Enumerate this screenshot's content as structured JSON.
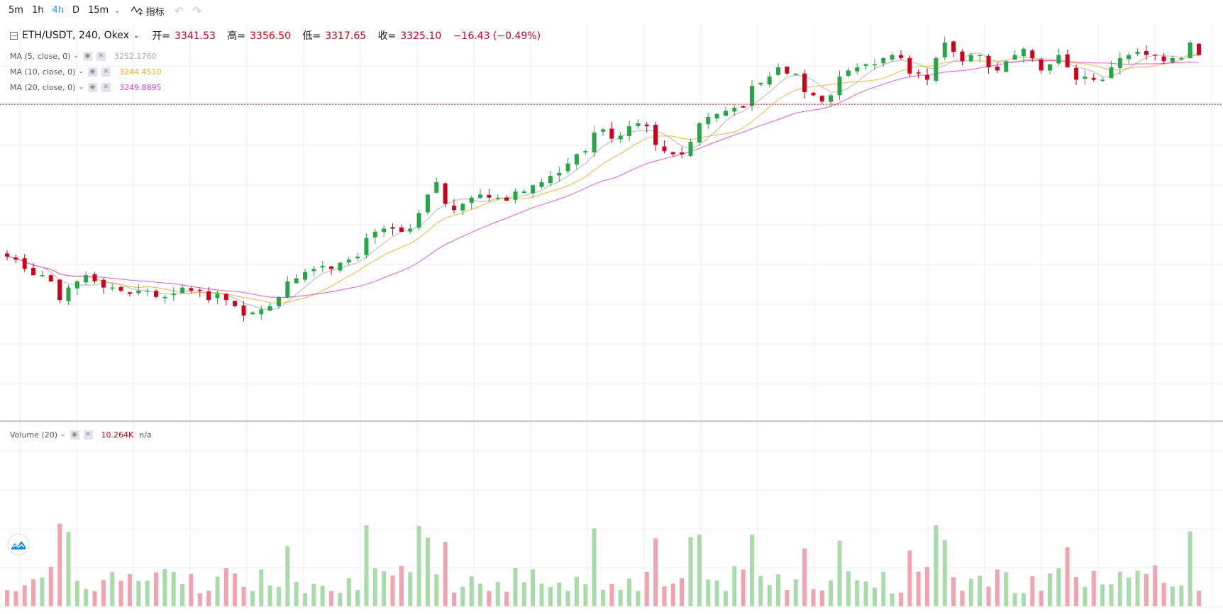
{
  "toolbar": {
    "intervals": [
      "5m",
      "1h",
      "4h",
      "D",
      "15m"
    ],
    "active_interval": "4h",
    "indicators_label": "指标"
  },
  "legend": {
    "symbol": "ETH/USDT, 240, Okex",
    "open_label": "开=",
    "open": "3341.53",
    "high_label": "高=",
    "high": "3356.50",
    "low_label": "低=",
    "low": "3317.65",
    "close_label": "收=",
    "close": "3325.10",
    "change": "−16.43 (−0.49%)"
  },
  "ma": [
    {
      "label": "MA (5, close, 0)",
      "value": "3252.1760",
      "color": "#a8a8a8"
    },
    {
      "label": "MA (10, close, 0)",
      "value": "3244.4510",
      "color": "#f5a623"
    },
    {
      "label": "MA (20, close, 0)",
      "value": "3249.8895",
      "color": "#e040c8"
    }
  ],
  "volume_legend": {
    "label": "Volume (20)",
    "value": "10.264K",
    "extra": "n/a"
  },
  "colors": {
    "up": "#26a646",
    "down": "#d0021b",
    "up_vol": "#a8dba8",
    "down_vol": "#f2a3ae",
    "grid": "#e8eef2"
  },
  "chart_data": {
    "type": "candlestick",
    "symbol": "ETH/USDT",
    "interval": "240",
    "price_range": [
      3225,
      3345
    ],
    "last_close": 3325.1,
    "ohlc_path": [
      3276,
      3275,
      3272,
      3270,
      3270,
      3268,
      3262,
      3266,
      3268,
      3270,
      3268,
      3266,
      3266,
      3265,
      3264,
      3265,
      3265,
      3263,
      3263,
      3264,
      3266,
      3265,
      3265,
      3262,
      3264,
      3262,
      3260,
      3257,
      3258,
      3259,
      3260,
      3263,
      3268,
      3269,
      3271,
      3272,
      3273,
      3272,
      3274,
      3275,
      3276,
      3282,
      3284,
      3285,
      3285,
      3284,
      3285,
      3290,
      3296,
      3300,
      3293,
      3291,
      3293,
      3295,
      3296,
      3295,
      3295,
      3294,
      3297,
      3297,
      3299,
      3300,
      3302,
      3303,
      3306,
      3309,
      3310,
      3316,
      3317,
      3314,
      3315,
      3318,
      3319,
      3318,
      3312,
      3310,
      3309,
      3309,
      3313,
      3319,
      3321,
      3322,
      3323,
      3324,
      3324,
      3331,
      3332,
      3334,
      3337,
      3335,
      3335,
      3329,
      3328,
      3326,
      3328,
      3334,
      3336,
      3337,
      3338,
      3338,
      3340,
      3341,
      3340,
      3335,
      3335,
      3333,
      3340,
      3345,
      3342,
      3339,
      3341,
      3341,
      3337,
      3336,
      3339,
      3341,
      3343,
      3340,
      3336,
      3338,
      3341,
      3337,
      3333,
      3334,
      3333,
      3333,
      3337,
      3340,
      3341,
      3342,
      3341,
      3341,
      3339,
      3340,
      3340,
      3345,
      3341
    ]
  }
}
